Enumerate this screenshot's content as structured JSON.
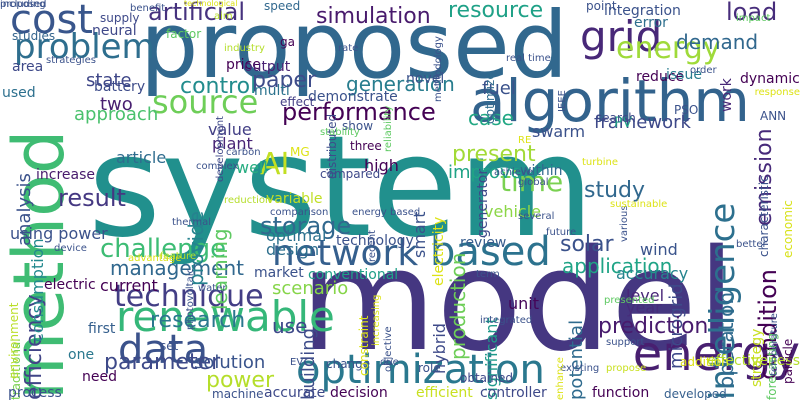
{
  "words": [
    {
      "text": "system",
      "color": "#21908d"
    },
    {
      "text": "model",
      "color": "#453781"
    },
    {
      "text": "proposed",
      "color": "#31688e"
    },
    {
      "text": "method",
      "color": "#3fbc73"
    },
    {
      "text": "algorithm",
      "color": "#33638d"
    },
    {
      "text": "optimization",
      "color": "#2a788e"
    },
    {
      "text": "energy",
      "color": "#481f70"
    },
    {
      "text": "renewable",
      "color": "#35b779"
    },
    {
      "text": "technique",
      "color": "#433e85"
    },
    {
      "text": "intelligence",
      "color": "#2d708e"
    },
    {
      "text": "network",
      "color": "#355f8d"
    },
    {
      "text": "based",
      "color": "#2c728e"
    },
    {
      "text": "data",
      "color": "#3b528b"
    },
    {
      "text": "source",
      "color": "#6ece58"
    },
    {
      "text": "problem",
      "color": "#2e6e8e"
    },
    {
      "text": "cost",
      "color": "#39568c"
    },
    {
      "text": "grid",
      "color": "#482878"
    },
    {
      "text": "energy",
      "color": "#9fda3a"
    },
    {
      "text": "AI",
      "color": "#c2df23"
    },
    {
      "text": "performance",
      "color": "#440154"
    },
    {
      "text": "control",
      "color": "#228c8d"
    },
    {
      "text": "artificial",
      "color": "#46327e"
    },
    {
      "text": "simulation",
      "color": "#481a6c"
    },
    {
      "text": "resource",
      "color": "#1fa187"
    },
    {
      "text": "generation",
      "color": "#287d8e"
    },
    {
      "text": "demand",
      "color": "#31688e"
    },
    {
      "text": "load",
      "color": "#472d7b"
    },
    {
      "text": "emission",
      "color": "#472a7a"
    },
    {
      "text": "time",
      "color": "#7ad151"
    },
    {
      "text": "study",
      "color": "#31688e"
    },
    {
      "text": "result",
      "color": "#453882"
    },
    {
      "text": "challenge",
      "color": "#3dbc74"
    },
    {
      "text": "management",
      "color": "#31688e"
    },
    {
      "text": "research",
      "color": "#2a778e"
    },
    {
      "text": "application",
      "color": "#20a486"
    },
    {
      "text": "solar",
      "color": "#3b528b"
    },
    {
      "text": "operation",
      "color": "#306a8e"
    },
    {
      "text": "condition",
      "color": "#440154"
    },
    {
      "text": "microgrid",
      "color": "#3e4989"
    },
    {
      "text": "prediction",
      "color": "#481b6d"
    },
    {
      "text": "power",
      "color": "#b5de2b"
    },
    {
      "text": "solution",
      "color": "#3a548c"
    },
    {
      "text": "parameter",
      "color": "#3e4a89"
    },
    {
      "text": "efficiency",
      "color": "#414487"
    },
    {
      "text": "storage",
      "color": "#31688e"
    },
    {
      "text": "analysis",
      "color": "#3b528b"
    },
    {
      "text": "paper",
      "color": "#3e4c8a"
    },
    {
      "text": "state",
      "color": "#3f4788"
    },
    {
      "text": "approach",
      "color": "#4ac16d"
    },
    {
      "text": "consumption",
      "color": "#23898e"
    },
    {
      "text": "provide",
      "color": "#26828e"
    },
    {
      "text": "learning",
      "color": "#5ec962"
    },
    {
      "text": "present",
      "color": "#a2da37"
    },
    {
      "text": "improve",
      "color": "#20a386"
    },
    {
      "text": "production",
      "color": "#6ece58"
    },
    {
      "text": "smart",
      "color": "#3b528b"
    },
    {
      "text": "framework",
      "color": "#3e4989"
    },
    {
      "text": "case",
      "color": "#22a884"
    },
    {
      "text": "PV",
      "color": "#20a486"
    },
    {
      "text": "fuel",
      "color": "#3b528b"
    },
    {
      "text": "two",
      "color": "#481f70"
    },
    {
      "text": "using power",
      "color": "#3b528b"
    },
    {
      "text": "level",
      "color": "#482677"
    },
    {
      "text": "year",
      "color": "#472c7a"
    },
    {
      "text": "unit",
      "color": "#450559"
    },
    {
      "text": "hybrid",
      "color": "#3e4a89"
    },
    {
      "text": "potential",
      "color": "#2f6b8e"
    },
    {
      "text": "significant",
      "color": "#1f9a8a"
    },
    {
      "text": "building",
      "color": "#3e4c8a"
    },
    {
      "text": "use",
      "color": "#3e4989"
    },
    {
      "text": "scenario",
      "color": "#86d549"
    },
    {
      "text": "wind",
      "color": "#3a548c"
    },
    {
      "text": "accuracy",
      "color": "#25848e"
    },
    {
      "text": "review",
      "color": "#365c8d"
    },
    {
      "text": "vehicle",
      "color": "#8bd646"
    },
    {
      "text": "electricity",
      "color": "#dde318"
    },
    {
      "text": "high",
      "color": "#440154"
    },
    {
      "text": "technology",
      "color": "#3b528b"
    },
    {
      "text": "optimal",
      "color": "#2c718e"
    },
    {
      "text": "design",
      "color": "#2e6f8e"
    },
    {
      "text": "variable",
      "color": "#c0df25"
    },
    {
      "text": "value",
      "color": "#423f85"
    },
    {
      "text": "plant",
      "color": "#482475"
    },
    {
      "text": "article",
      "color": "#2f6c8e"
    },
    {
      "text": "well",
      "color": "#27ad81"
    },
    {
      "text": "increase",
      "color": "#481b6d"
    },
    {
      "text": "current",
      "color": "#440154"
    },
    {
      "text": "market",
      "color": "#3b528b"
    },
    {
      "text": "conventional",
      "color": "#1fa088"
    },
    {
      "text": "first",
      "color": "#355f8d"
    },
    {
      "text": "traditional",
      "color": "#7ad151"
    },
    {
      "text": "environment",
      "color": "#bade28"
    },
    {
      "text": "electric",
      "color": "#440154"
    },
    {
      "text": "neural",
      "color": "#3f4889"
    },
    {
      "text": "battery",
      "color": "#3e4c8a"
    },
    {
      "text": "used",
      "color": "#2d708e"
    },
    {
      "text": "area",
      "color": "#3e4989"
    },
    {
      "text": "studies",
      "color": "#33638d"
    },
    {
      "text": "price",
      "color": "#440154"
    },
    {
      "text": "output",
      "color": "#482173"
    },
    {
      "text": "distributed",
      "color": "#3e4c8a"
    },
    {
      "text": "demonstrate",
      "color": "#3b528b"
    },
    {
      "text": "effect",
      "color": "#433e85"
    },
    {
      "text": "multi",
      "color": "#2c738e"
    },
    {
      "text": "reduce",
      "color": "#440154"
    },
    {
      "text": "issue",
      "color": "#287c8e"
    },
    {
      "text": "novel",
      "color": "#3b528b"
    },
    {
      "text": "dynamic",
      "color": "#440154"
    },
    {
      "text": "integration",
      "color": "#3b528b"
    },
    {
      "text": "error",
      "color": "#2e6f8e"
    },
    {
      "text": "work",
      "color": "#482878"
    },
    {
      "text": "optimize",
      "color": "#2f6b8e"
    },
    {
      "text": "swarm",
      "color": "#3b528b"
    },
    {
      "text": "within",
      "color": "#31688e"
    },
    {
      "text": "generator",
      "color": "#3e4989"
    },
    {
      "text": "process",
      "color": "#3b528b"
    },
    {
      "text": "need",
      "color": "#440154"
    },
    {
      "text": "one",
      "color": "#2a788e"
    },
    {
      "text": "machine",
      "color": "#3b528b"
    },
    {
      "text": "accurate",
      "color": "#3e4989"
    },
    {
      "text": "decision",
      "color": "#440154"
    },
    {
      "text": "efficient",
      "color": "#c8e020"
    },
    {
      "text": "controller",
      "color": "#3e4989"
    },
    {
      "text": "function",
      "color": "#440154"
    },
    {
      "text": "developed",
      "color": "#355f8d"
    },
    {
      "text": "effectiveness",
      "color": "#b5de2b"
    },
    {
      "text": "addition",
      "color": "#dde318"
    },
    {
      "text": "forecasting",
      "color": "#5ec962"
    },
    {
      "text": "particle",
      "color": "#440154"
    },
    {
      "text": "strategy",
      "color": "#c8e020"
    },
    {
      "text": "economic",
      "color": "#d8e219"
    },
    {
      "text": "characteristic",
      "color": "#3b528b"
    },
    {
      "text": "ANN",
      "color": "#3b528b"
    },
    {
      "text": "search",
      "color": "#3e4989"
    },
    {
      "text": "show",
      "color": "#3b528b"
    },
    {
      "text": "three",
      "color": "#440154"
    },
    {
      "text": "compared",
      "color": "#3e4989"
    },
    {
      "text": "MG",
      "color": "#dde318"
    },
    {
      "text": "speed",
      "color": "#31688e"
    },
    {
      "text": "supply",
      "color": "#3e4989"
    },
    {
      "text": "factor",
      "color": "#5ec962"
    },
    {
      "text": "point",
      "color": "#3b528b"
    },
    {
      "text": "benefit",
      "color": "#3b528b"
    },
    {
      "text": "ga",
      "color": "#440154"
    },
    {
      "text": "rate",
      "color": "#3b528b"
    },
    {
      "text": "reliability",
      "color": "#5ec962"
    },
    {
      "text": "methodology",
      "color": "#3b528b"
    },
    {
      "text": "real time",
      "color": "#3b528b"
    },
    {
      "text": "strategies",
      "color": "#3b528b"
    },
    {
      "text": "industry",
      "color": "#b5de2b"
    },
    {
      "text": "development",
      "color": "#3e4989"
    },
    {
      "text": "stability",
      "color": "#5ec962"
    },
    {
      "text": "set",
      "color": "#3b528b"
    },
    {
      "text": "PSO",
      "color": "#3b528b"
    },
    {
      "text": "RE",
      "color": "#dde318"
    },
    {
      "text": "change",
      "color": "#3b528b"
    },
    {
      "text": "constraint",
      "color": "#dde318"
    },
    {
      "text": "objective",
      "color": "#3b528b"
    },
    {
      "text": "due",
      "color": "#3b528b"
    },
    {
      "text": "role",
      "color": "#3b528b"
    },
    {
      "text": "obtained",
      "color": "#3e4989"
    },
    {
      "text": "propose",
      "color": "#c8e020"
    },
    {
      "text": "integrated",
      "color": "#3b528b"
    },
    {
      "text": "support",
      "color": "#3b528b"
    },
    {
      "text": "presented",
      "color": "#5ec962"
    },
    {
      "text": "better",
      "color": "#3b528b"
    },
    {
      "text": "future",
      "color": "#3b528b"
    },
    {
      "text": "various",
      "color": "#3b528b"
    },
    {
      "text": "several",
      "color": "#3b528b"
    },
    {
      "text": "global",
      "color": "#3b528b"
    },
    {
      "text": "achieve",
      "color": "#3b528b"
    },
    {
      "text": "turbine",
      "color": "#dde318"
    },
    {
      "text": "sustainable",
      "color": "#dde318"
    },
    {
      "text": "existing",
      "color": "#3b528b"
    },
    {
      "text": "EV",
      "color": "#3b528b"
    },
    {
      "text": "temperature",
      "color": "#3b528b"
    },
    {
      "text": "thermal",
      "color": "#3b528b"
    },
    {
      "text": "carbon",
      "color": "#3b528b"
    },
    {
      "text": "complex",
      "color": "#3b528b"
    },
    {
      "text": "feature",
      "color": "#b5de2b"
    },
    {
      "text": "device",
      "color": "#3b528b"
    },
    {
      "text": "water",
      "color": "#3b528b"
    },
    {
      "text": "reduction",
      "color": "#b5de2b"
    },
    {
      "text": "comparison",
      "color": "#3b528b"
    },
    {
      "text": "energy based",
      "color": "#3b528b"
    },
    {
      "text": "aim",
      "color": "#b5de2b"
    },
    {
      "text": "impact",
      "color": "#5ec962"
    },
    {
      "text": "response",
      "color": "#dde318"
    },
    {
      "text": "IEEE",
      "color": "#3b528b"
    },
    {
      "text": "order",
      "color": "#3b528b"
    },
    {
      "text": "term",
      "color": "#3b528b"
    },
    {
      "text": "enhance",
      "color": "#dde318"
    },
    {
      "text": "advantage",
      "color": "#dde318"
    },
    {
      "text": "recent",
      "color": "#3b528b"
    },
    {
      "text": "photovoltaic",
      "color": "#3b528b"
    },
    {
      "text": "increasing",
      "color": "#dde318"
    },
    {
      "text": "technological",
      "color": "#dde318"
    },
    {
      "text": "including",
      "color": "#3b528b"
    },
    {
      "text": "proposed",
      "color": "#3b528b"
    }
  ]
}
